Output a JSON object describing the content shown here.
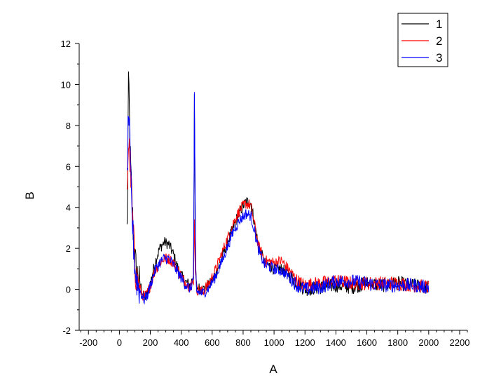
{
  "chart_data": {
    "type": "line",
    "title": "",
    "xlabel": "A",
    "ylabel": "B",
    "xlim": [
      -260,
      2250
    ],
    "ylim": [
      -2,
      12
    ],
    "x_ticks": [
      -200,
      0,
      200,
      400,
      600,
      800,
      1000,
      1200,
      1400,
      1600,
      1800,
      2000,
      2200
    ],
    "y_ticks": [
      -2,
      0,
      2,
      4,
      6,
      8,
      10,
      12
    ],
    "grid": false,
    "legend_position": "top-right",
    "series": [
      {
        "name": "1",
        "color": "#000000",
        "x": [
          50,
          60,
          70,
          80,
          90,
          100,
          110,
          120,
          140,
          160,
          180,
          200,
          230,
          260,
          290,
          320,
          350,
          380,
          420,
          460,
          480,
          485,
          490,
          495,
          500,
          540,
          580,
          620,
          660,
          700,
          740,
          780,
          820,
          850,
          870,
          900,
          940,
          1000,
          1050,
          1100,
          1150,
          1200,
          1300,
          1400,
          1500,
          1600,
          1700,
          1800,
          1900,
          2000
        ],
        "y": [
          2.9,
          10.5,
          6.5,
          4.5,
          2.8,
          1.5,
          0.9,
          0.6,
          0.1,
          -0.4,
          -0.3,
          0.3,
          1.3,
          2.0,
          2.3,
          2.2,
          1.7,
          1.0,
          0.4,
          0.2,
          0.8,
          9.5,
          3.5,
          0.4,
          0.1,
          0.0,
          0.2,
          0.7,
          1.5,
          2.3,
          3.1,
          3.8,
          4.3,
          4.2,
          3.4,
          2.1,
          1.3,
          1.0,
          1.0,
          0.7,
          0.3,
          0.0,
          0.1,
          0.2,
          0.1,
          0.3,
          0.2,
          0.3,
          0.2,
          0.1
        ]
      },
      {
        "name": "2",
        "color": "#ff0000",
        "x": [
          50,
          60,
          70,
          80,
          90,
          100,
          110,
          120,
          140,
          160,
          180,
          200,
          230,
          260,
          290,
          320,
          350,
          380,
          420,
          460,
          480,
          485,
          490,
          495,
          500,
          540,
          580,
          620,
          660,
          700,
          740,
          780,
          820,
          850,
          870,
          900,
          940,
          1000,
          1050,
          1100,
          1150,
          1200,
          1300,
          1400,
          1500,
          1600,
          1700,
          1800,
          1900,
          2000
        ],
        "y": [
          5.2,
          7.3,
          6.2,
          4.3,
          2.6,
          1.2,
          0.6,
          0.3,
          -0.1,
          -0.4,
          -0.2,
          0.2,
          0.9,
          1.3,
          1.5,
          1.5,
          1.3,
          0.9,
          0.4,
          0.1,
          0.5,
          3.6,
          1.2,
          0.3,
          0.0,
          -0.1,
          0.3,
          0.9,
          1.7,
          2.5,
          3.3,
          3.9,
          4.2,
          4.1,
          3.3,
          2.1,
          1.4,
          1.3,
          1.4,
          0.9,
          0.4,
          0.2,
          0.3,
          0.4,
          0.3,
          0.3,
          0.3,
          0.3,
          0.2,
          0.1
        ]
      },
      {
        "name": "3",
        "color": "#0000ff",
        "x": [
          50,
          60,
          70,
          80,
          90,
          100,
          110,
          120,
          140,
          160,
          180,
          200,
          230,
          260,
          290,
          320,
          350,
          380,
          420,
          460,
          480,
          485,
          490,
          495,
          500,
          540,
          580,
          620,
          660,
          700,
          740,
          780,
          820,
          850,
          870,
          900,
          940,
          1000,
          1050,
          1100,
          1150,
          1200,
          1300,
          1400,
          1500,
          1600,
          1700,
          1800,
          1900,
          2000
        ],
        "y": [
          5.5,
          9.0,
          6.0,
          4.0,
          2.4,
          1.1,
          0.5,
          0.2,
          -0.2,
          -0.5,
          -0.3,
          0.2,
          0.9,
          1.3,
          1.5,
          1.5,
          1.2,
          0.8,
          0.3,
          0.0,
          0.6,
          9.4,
          3.8,
          0.3,
          -0.1,
          -0.2,
          0.1,
          0.6,
          1.3,
          2.1,
          2.9,
          3.4,
          3.7,
          3.6,
          3.0,
          1.9,
          1.2,
          1.0,
          0.9,
          0.6,
          0.2,
          0.0,
          0.1,
          0.4,
          0.4,
          0.3,
          0.2,
          0.2,
          0.2,
          0.1
        ]
      }
    ]
  }
}
